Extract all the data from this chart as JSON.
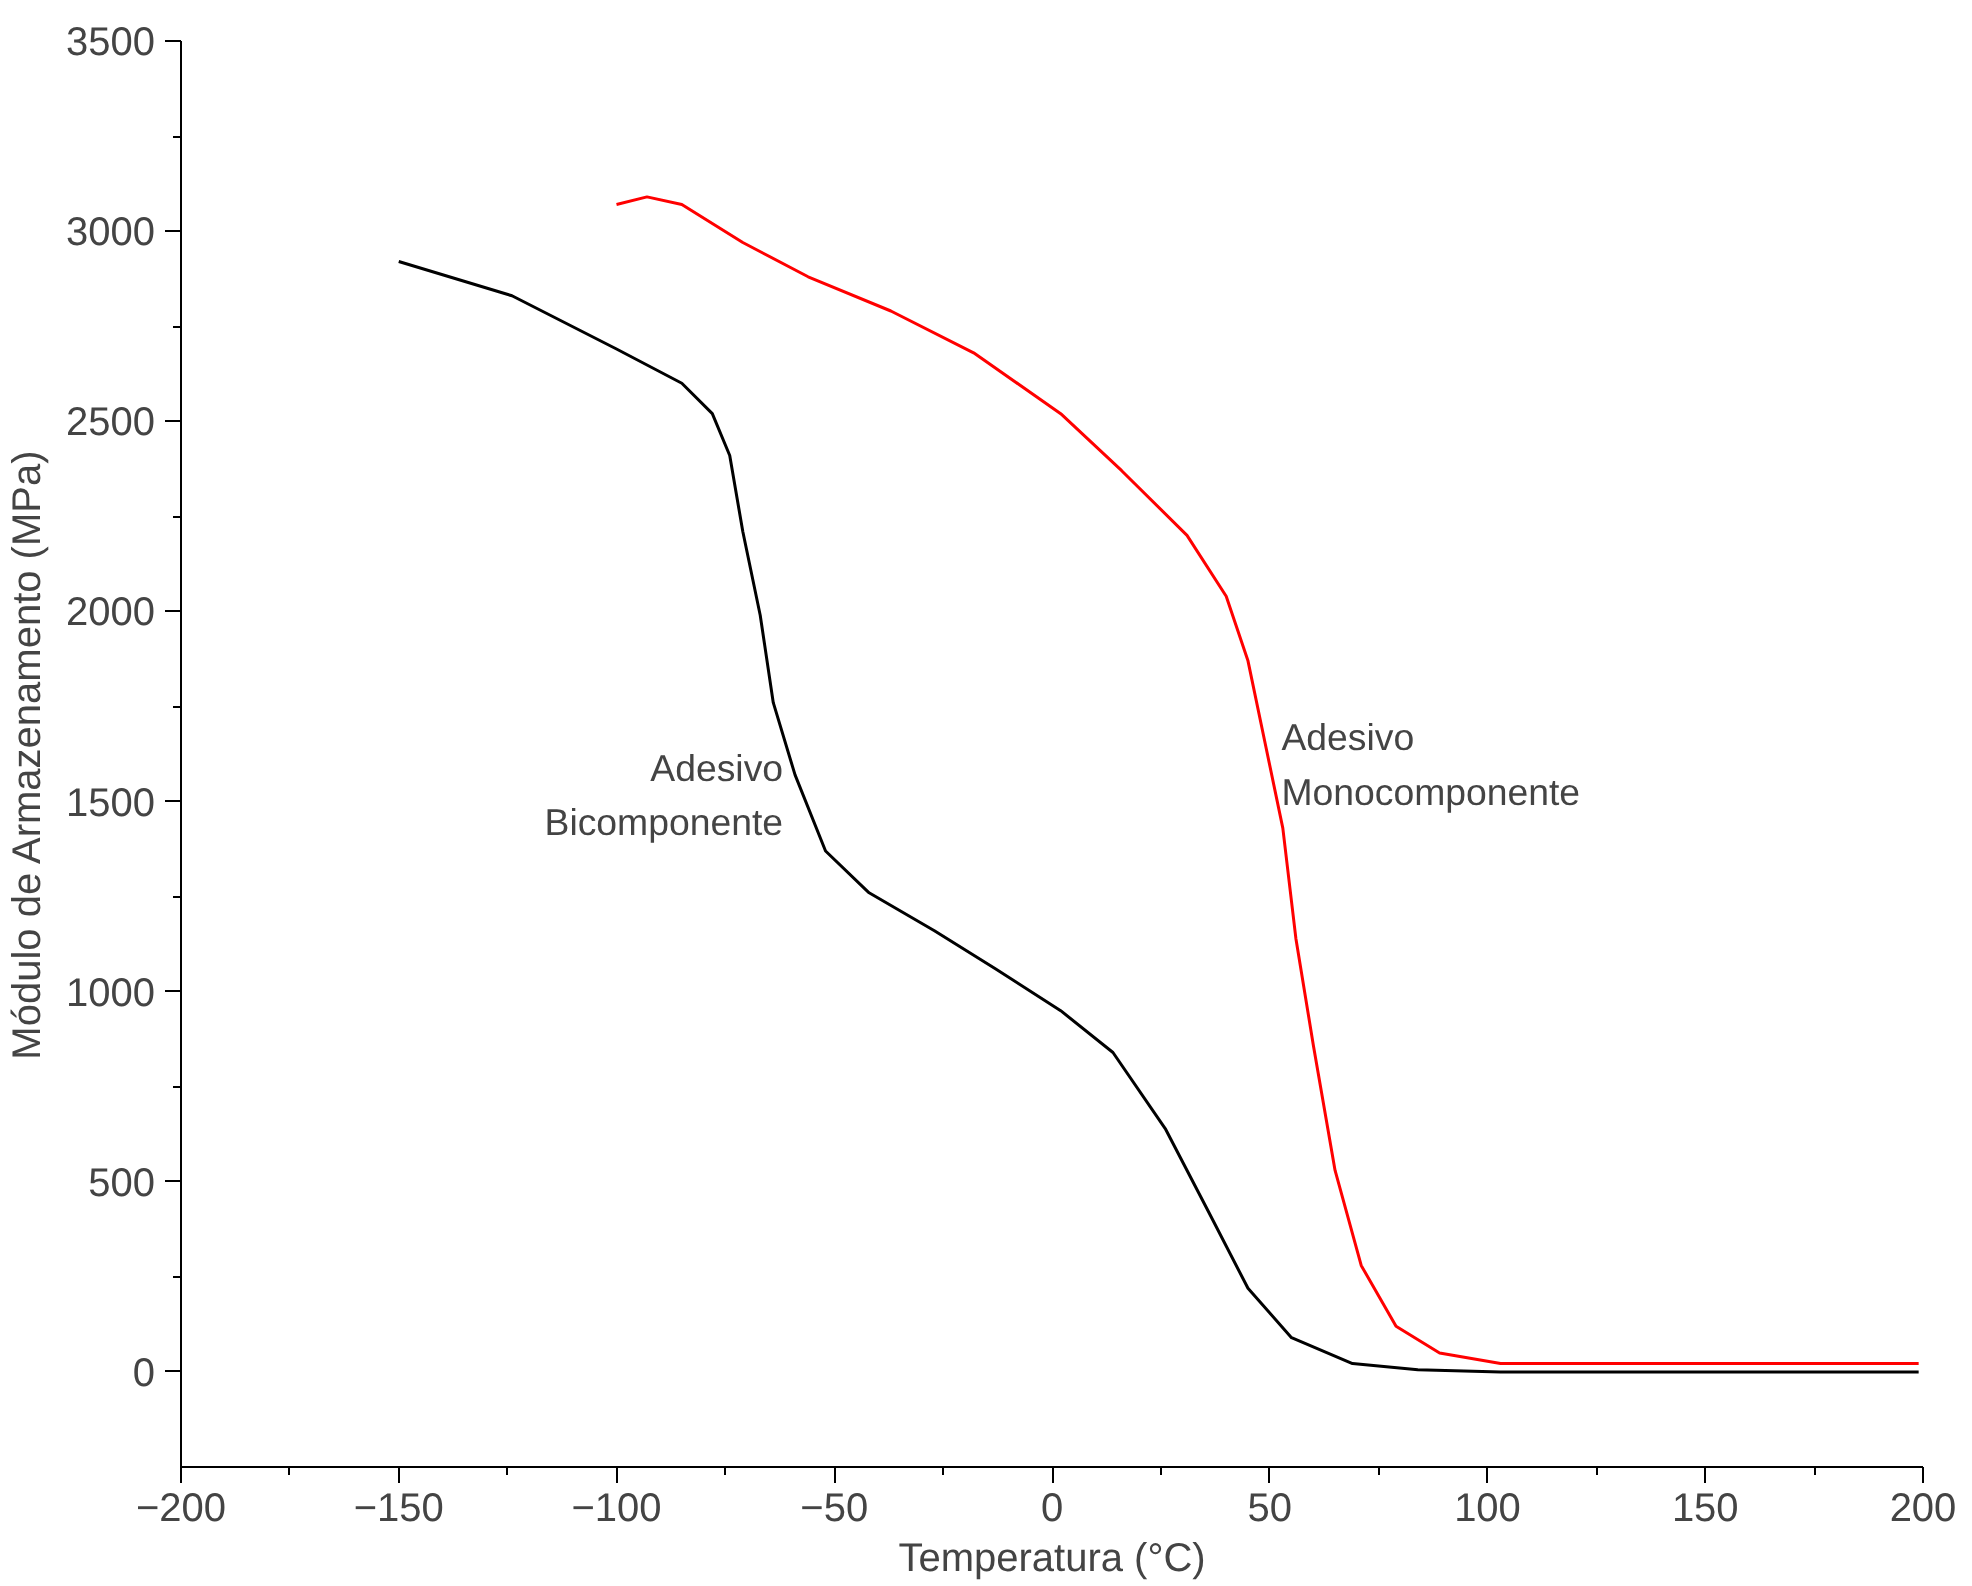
{
  "chart_data": {
    "type": "line",
    "xlabel": "Temperatura (°C)",
    "ylabel": "Módulo de Armazenamento (MPa)",
    "xlim": [
      -200,
      200
    ],
    "ylim": [
      -250,
      3500
    ],
    "xticks": [
      -200,
      -150,
      -100,
      -50,
      0,
      50,
      100,
      150,
      200
    ],
    "yticks": [
      0,
      500,
      1000,
      1500,
      2000,
      2500,
      3000,
      3500
    ],
    "grid": false,
    "legend": false,
    "marker": "none",
    "line_style": "solid",
    "series": [
      {
        "name": "Adesivo Bicomponente",
        "color": "#000000",
        "x": [
          -150,
          -124,
          -100,
          -85,
          -78,
          -74,
          -71,
          -67,
          -64,
          -59,
          -52,
          -42,
          -27,
          -13,
          2,
          14,
          26,
          36,
          45,
          55,
          69,
          84,
          103,
          199
        ],
        "values": [
          2920,
          2830,
          2690,
          2600,
          2520,
          2410,
          2210,
          1990,
          1760,
          1570,
          1370,
          1260,
          1160,
          1060,
          950,
          840,
          640,
          420,
          220,
          90,
          22,
          6,
          0,
          0
        ]
      },
      {
        "name": "Adesivo Monocomponente",
        "color": "#ff0000",
        "x": [
          -100,
          -93,
          -85,
          -71,
          -56,
          -37,
          -18,
          2,
          16,
          31,
          40,
          45,
          49,
          53,
          56,
          60,
          65,
          71,
          79,
          89,
          103,
          199
        ],
        "values": [
          3070,
          3090,
          3070,
          2970,
          2880,
          2790,
          2680,
          2520,
          2370,
          2200,
          2040,
          1870,
          1650,
          1430,
          1140,
          860,
          530,
          280,
          120,
          50,
          22,
          22
        ]
      }
    ]
  }
}
